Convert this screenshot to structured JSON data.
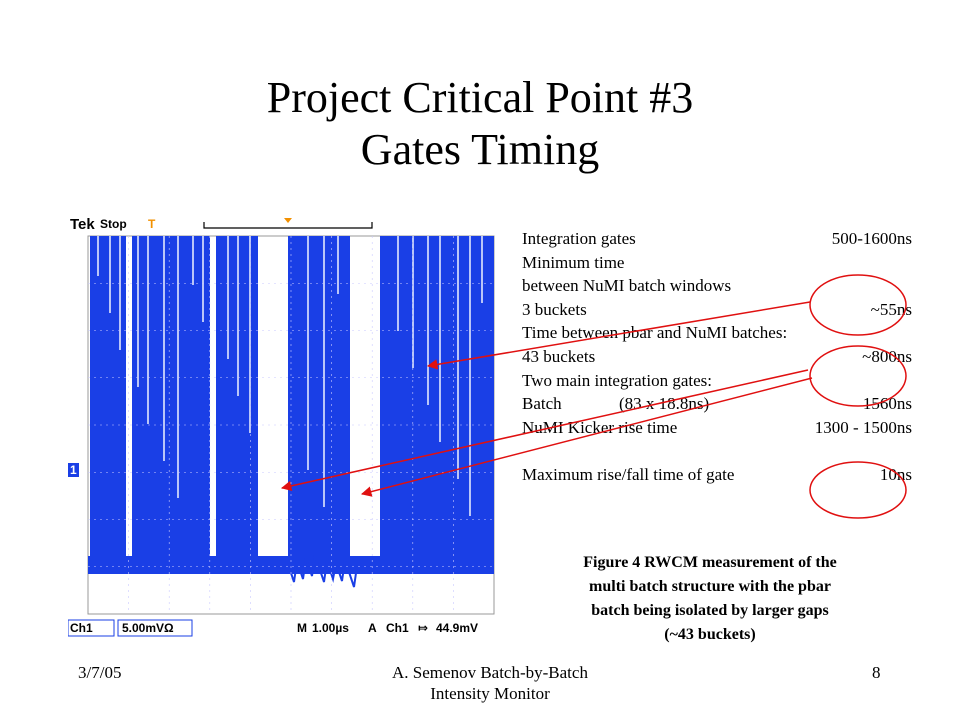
{
  "slide": {
    "title_line1": "Project Critical Point #3",
    "title_line2": "Gates Timing"
  },
  "scope": {
    "brand": "Tek",
    "status": "Stop",
    "trigger_marker": "T",
    "ch_marker": "1",
    "ch1_label": "Ch1",
    "ch1_scale": "5.00mVΩ",
    "m_label": "M",
    "timebase": "1.00µs",
    "a_label": "A",
    "trig_channel": "Ch1",
    "trig_slope": "⤇",
    "trig_level": "44.9mV",
    "trace_color": "#1a3fe6"
  },
  "specs": [
    {
      "label": "Integration gates",
      "value": "500-1600ns"
    },
    {
      "label": "Minimum time",
      "value": ""
    },
    {
      "label": "between NuMI batch windows",
      "value": ""
    },
    {
      "label": "3 buckets",
      "value": "~55ns"
    },
    {
      "label": "Time between pbar and NuMI batches:",
      "value": ""
    },
    {
      "label": "43 buckets",
      "value": "~800ns"
    },
    {
      "label": "Two main integration gates:",
      "value": ""
    },
    {
      "label": "Batch",
      "mid": "(83 x 18.8ns)",
      "value": "1560ns"
    },
    {
      "label": "NuMI Kicker rise time",
      "value": "1300 - 1500ns"
    },
    {
      "label": "",
      "value": ""
    },
    {
      "label": "Maximum rise/fall time of gate",
      "value": "10ns"
    }
  ],
  "caption": {
    "line1": "Figure 4 RWCM measurement  of the",
    "line2": "multi batch structure with the pbar",
    "line3": "batch being isolated by larger gaps",
    "line4": "(~43 buckets)"
  },
  "footer": {
    "date": "3/7/05",
    "center_line1": "A. Semenov     Batch-by-Batch",
    "center_line2": "Intensity Monitor",
    "page": "8"
  },
  "colors": {
    "annotation": "#e01010"
  }
}
